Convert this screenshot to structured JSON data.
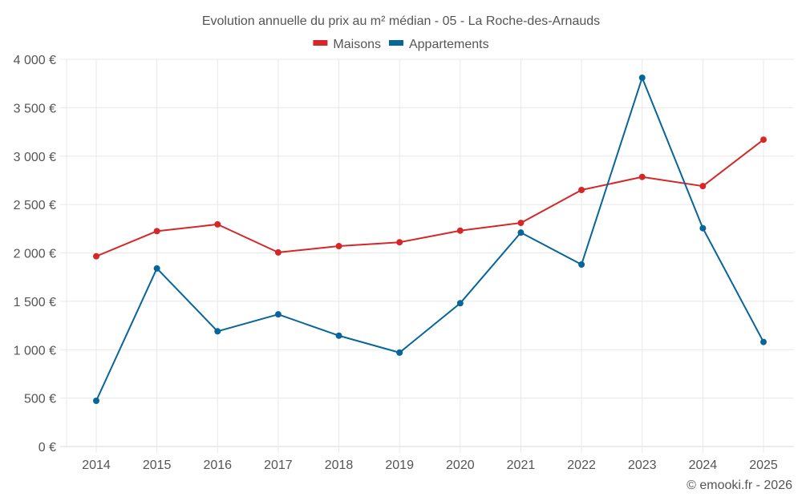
{
  "chart_data": {
    "type": "line",
    "title": "Evolution annuelle du prix au m² médian - 05 - La Roche-des-Arnauds",
    "xlabel": "",
    "ylabel": "",
    "x": [
      "2014",
      "2015",
      "2016",
      "2017",
      "2018",
      "2019",
      "2020",
      "2021",
      "2022",
      "2023",
      "2024",
      "2025"
    ],
    "ylim": [
      0,
      4000
    ],
    "yticks": [
      0,
      500,
      1000,
      1500,
      2000,
      2500,
      3000,
      3500,
      4000
    ],
    "ytick_labels": [
      "0 €",
      "500 €",
      "1 000 €",
      "1 500 €",
      "2 000 €",
      "2 500 €",
      "3 000 €",
      "3 500 €",
      "4 000 €"
    ],
    "grid": true,
    "legend_position": "top-center",
    "series": [
      {
        "name": "Maisons",
        "color": "#d62728",
        "values": [
          1965,
          2225,
          2295,
          2005,
          2070,
          2110,
          2230,
          2310,
          2650,
          2785,
          2690,
          3170
        ]
      },
      {
        "name": "Appartements",
        "color": "#076599",
        "values": [
          472,
          1840,
          1190,
          1365,
          1145,
          970,
          1480,
          2210,
          1880,
          3810,
          2255,
          1080
        ]
      }
    ],
    "credit": "© emooki.fr - 2026"
  }
}
